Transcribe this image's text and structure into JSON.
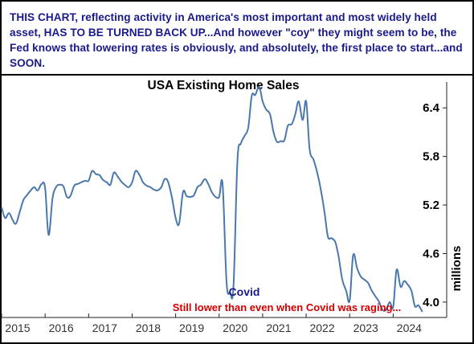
{
  "headline": "THIS CHART, reflecting activity in America's most important and most widely held asset, HAS TO BE TURNED BACK UP...And however \"coy\" they might seem to be, the Fed knows that lowering rates is obviously, and absolutely, the first place to start...and SOON.",
  "colors": {
    "headline": "#1a1a8c",
    "line": "#4a78ad",
    "covid_label": "#1a1a8c",
    "note": "#d40000",
    "frame": "#000000"
  },
  "annotations": {
    "covid": "Covid",
    "note": "Still lower than even when Covid was raging..."
  },
  "chart_data": {
    "type": "line",
    "title": "USA Existing Home Sales",
    "ylabel": "millions",
    "xlabel": "",
    "ylim": [
      3.82,
      6.72
    ],
    "xlim": [
      2015.0,
      2024.75
    ],
    "yticks": [
      4.0,
      4.6,
      5.2,
      5.8,
      6.4
    ],
    "ytick_labels": [
      "4.0",
      "4.6",
      "5.2",
      "5.8",
      "6.4"
    ],
    "xticks": [
      2015,
      2016,
      2017,
      2018,
      2019,
      2020,
      2021,
      2022,
      2023,
      2024
    ],
    "xtick_labels": [
      "2015",
      "2016",
      "2017",
      "2018",
      "2019",
      "2020",
      "2021",
      "2022",
      "2023",
      "2024"
    ],
    "grid": false,
    "series": [
      {
        "x": [
          2015.0,
          2015.08,
          2015.17,
          2015.25,
          2015.33,
          2015.42,
          2015.5,
          2015.58,
          2015.67,
          2015.75,
          2015.83,
          2015.92,
          2016.0,
          2016.08,
          2016.17,
          2016.25,
          2016.33,
          2016.42,
          2016.5,
          2016.58,
          2016.67,
          2016.75,
          2016.83,
          2016.92,
          2017.0,
          2017.08,
          2017.17,
          2017.25,
          2017.33,
          2017.42,
          2017.5,
          2017.58,
          2017.67,
          2017.75,
          2017.83,
          2017.92,
          2018.0,
          2018.08,
          2018.17,
          2018.25,
          2018.33,
          2018.42,
          2018.5,
          2018.58,
          2018.67,
          2018.75,
          2018.83,
          2018.92,
          2019.0,
          2019.08,
          2019.17,
          2019.25,
          2019.33,
          2019.42,
          2019.5,
          2019.58,
          2019.67,
          2019.75,
          2019.83,
          2019.92,
          2020.0,
          2020.08,
          2020.17,
          2020.25,
          2020.33,
          2020.42,
          2020.5,
          2020.58,
          2020.67,
          2020.75,
          2020.83,
          2020.92,
          2021.0,
          2021.08,
          2021.17,
          2021.25,
          2021.33,
          2021.42,
          2021.5,
          2021.58,
          2021.67,
          2021.75,
          2021.83,
          2021.92,
          2022.0,
          2022.08,
          2022.17,
          2022.25,
          2022.33,
          2022.42,
          2022.5,
          2022.58,
          2022.67,
          2022.75,
          2022.83,
          2022.92,
          2023.0,
          2023.08,
          2023.17,
          2023.25,
          2023.33,
          2023.42,
          2023.5,
          2023.58,
          2023.67,
          2023.75,
          2023.83,
          2023.92,
          2024.0,
          2024.08,
          2024.17,
          2024.25,
          2024.33,
          2024.42,
          2024.5,
          2024.58,
          2024.67
        ],
        "values": [
          5.17,
          5.04,
          5.1,
          5.02,
          4.97,
          5.12,
          5.26,
          5.32,
          5.38,
          5.42,
          5.38,
          5.46,
          5.41,
          4.83,
          5.28,
          5.42,
          5.45,
          5.43,
          5.3,
          5.31,
          5.44,
          5.46,
          5.48,
          5.5,
          5.5,
          5.62,
          5.58,
          5.57,
          5.51,
          5.48,
          5.45,
          5.6,
          5.55,
          5.49,
          5.45,
          5.42,
          5.48,
          5.62,
          5.57,
          5.48,
          5.44,
          5.42,
          5.39,
          5.38,
          5.42,
          5.52,
          5.48,
          5.28,
          5.04,
          4.97,
          5.36,
          5.31,
          5.3,
          5.32,
          5.42,
          5.45,
          5.52,
          5.46,
          5.36,
          5.3,
          5.3,
          5.45,
          4.25,
          4.12,
          4.2,
          5.74,
          5.96,
          6.05,
          6.16,
          6.55,
          6.56,
          6.66,
          6.48,
          6.38,
          6.32,
          6.1,
          5.98,
          5.99,
          6.0,
          6.18,
          6.2,
          6.32,
          6.48,
          6.25,
          6.48,
          5.89,
          5.76,
          5.61,
          5.41,
          5.12,
          4.81,
          4.79,
          4.74,
          4.55,
          4.28,
          4.14,
          4.02,
          4.58,
          4.42,
          4.32,
          4.28,
          4.24,
          4.15,
          4.08,
          4.01,
          3.91,
          3.9,
          4.0,
          3.94,
          4.4,
          4.19,
          4.26,
          4.22,
          4.14,
          3.95,
          3.96,
          3.88
        ]
      }
    ]
  }
}
